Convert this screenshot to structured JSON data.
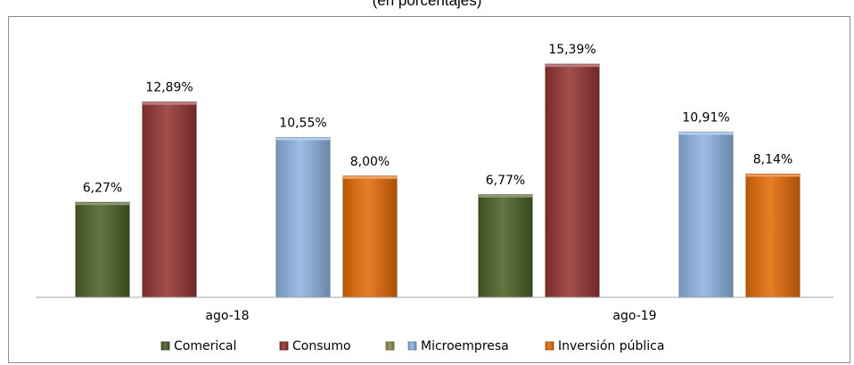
{
  "chart_data": {
    "type": "bar",
    "title": "(en porcentajes)",
    "categories": [
      "ago-18",
      "ago-19"
    ],
    "series": [
      {
        "name": "Comerical",
        "values": [
          6.27,
          6.77
        ],
        "labels": [
          "6,27%",
          "6,77%"
        ],
        "color": "#4f6228"
      },
      {
        "name": "Consumo",
        "values": [
          12.89,
          15.39
        ],
        "labels": [
          "12,89%",
          "15,39%"
        ],
        "color": "#953735"
      },
      {
        "name": "",
        "values": [
          null,
          null
        ],
        "labels": [
          "",
          ""
        ],
        "color": "#948a54"
      },
      {
        "name": "Microempresa",
        "values": [
          10.55,
          10.91
        ],
        "labels": [
          "10,55%",
          "10,91%"
        ],
        "color": "#8eb4e3"
      },
      {
        "name": "Inversión pública",
        "values": [
          8.0,
          8.14
        ],
        "labels": [
          "8,00%",
          "8,14%"
        ],
        "color": "#e46c0a"
      }
    ],
    "ylim": [
      0,
      17.4
    ],
    "grid": false,
    "legend": "bottom"
  }
}
